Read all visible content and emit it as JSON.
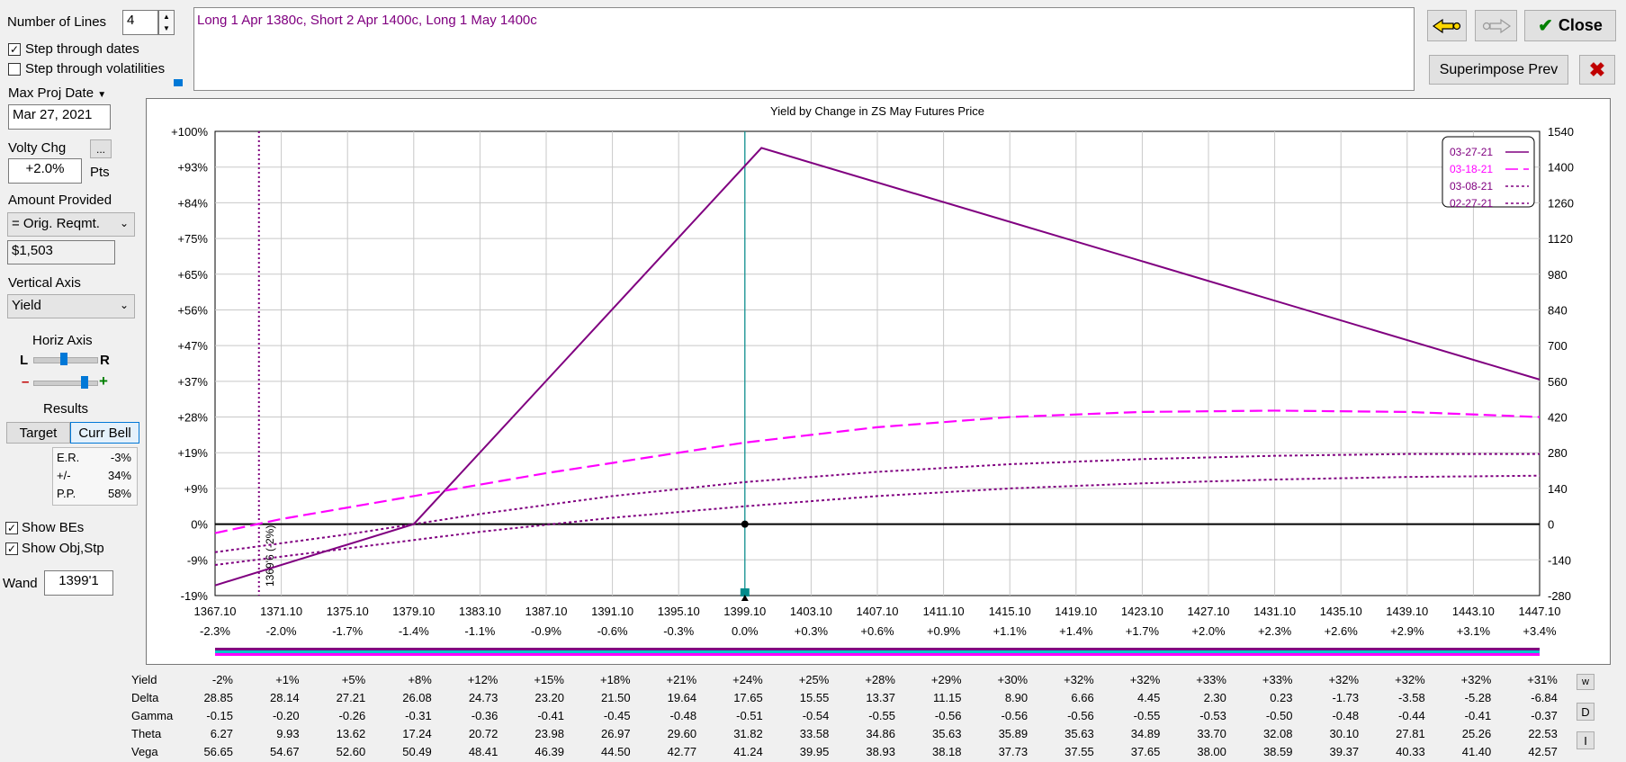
{
  "controls": {
    "num_lines_label": "Number of Lines",
    "num_lines_value": "4",
    "step_dates_label": "Step through dates",
    "step_dates_checked": true,
    "step_vols_label": "Step through volatilities",
    "step_vols_checked": false,
    "max_proj_date_label": "Max Proj Date",
    "max_proj_date_value": "Mar 27, 2021",
    "volty_chg_label": "Volty Chg",
    "volty_chg_button": "...",
    "volty_chg_value": "+2.0%",
    "volty_chg_units": "Pts",
    "amount_provided_label": "Amount Provided",
    "amount_provided_select": "= Orig. Reqmt.",
    "amount_value": "$1,503",
    "vertical_axis_label": "Vertical Axis",
    "vertical_axis_select": "Yield",
    "horiz_axis_label": "Horiz Axis",
    "horiz_left": "L",
    "horiz_right": "R",
    "zoom_minus": "–",
    "zoom_plus": "+",
    "results_label": "Results",
    "target_button": "Target",
    "curr_bell_button": "Curr Bell",
    "results_rows": [
      {
        "label": "E.R.",
        "value": "-3%"
      },
      {
        "label": "+/-",
        "value": "34%"
      },
      {
        "label": "P.P.",
        "value": "58%"
      }
    ],
    "show_bes_label": "Show BEs",
    "show_bes_checked": true,
    "show_obj_label": "Show Obj,Stp",
    "show_obj_checked": true,
    "wand_label": "Wand",
    "wand_value": "1399'1"
  },
  "position_text": "Long 1 Apr 1380c, Short 2 Apr 1400c, Long 1 May 1400c",
  "top_buttons": {
    "close_label": "Close",
    "superimpose_label": "Superimpose Prev",
    "back_arrow": "back-arrow-icon",
    "forward_arrow": "forward-arrow-icon",
    "delete_icon": "x-icon"
  },
  "colors": {
    "purple": "#800080",
    "magenta": "#ff00ff",
    "teal": "#008b8b",
    "close_check": "#008000",
    "delete_red": "#c00000"
  },
  "chart_data": {
    "type": "line",
    "title": "Yield by Change in ZS May Futures Price",
    "x_price_ticks": [
      "1367.10",
      "1371.10",
      "1375.10",
      "1379.10",
      "1383.10",
      "1387.10",
      "1391.10",
      "1395.10",
      "1399.10",
      "1403.10",
      "1407.10",
      "1411.10",
      "1415.10",
      "1419.10",
      "1423.10",
      "1427.10",
      "1431.10",
      "1435.10",
      "1439.10",
      "1443.10",
      "1447.10"
    ],
    "x_pct_ticks": [
      "-2.3%",
      "-2.0%",
      "-1.7%",
      "-1.4%",
      "-1.1%",
      "-0.9%",
      "-0.6%",
      "-0.3%",
      "0.0%",
      "+0.3%",
      "+0.6%",
      "+0.9%",
      "+1.1%",
      "+1.4%",
      "+1.7%",
      "+2.0%",
      "+2.3%",
      "+2.6%",
      "+2.9%",
      "+3.1%",
      "+3.4%"
    ],
    "y_left_ticks": [
      "+100%",
      "+93%",
      "+84%",
      "+75%",
      "+65%",
      "+56%",
      "+47%",
      "+37%",
      "+28%",
      "+19%",
      "+9%",
      "0%",
      "-9%",
      "-19%"
    ],
    "y_right_ticks": [
      "1540",
      "1400",
      "1260",
      "1120",
      "980",
      "840",
      "700",
      "560",
      "420",
      "280",
      "140",
      "0",
      "-140",
      "-280"
    ],
    "ylim": [
      -280,
      1540
    ],
    "x_range": [
      1367.1,
      1447.1
    ],
    "current_price": 1399.1,
    "breakeven": {
      "price": 1369.75,
      "label": "1369'6 (-2%)"
    },
    "legend_position": "top-right",
    "series": [
      {
        "name": "03-27-21",
        "style": "solid",
        "color": "#800080",
        "x": [
          1367.1,
          1379.1,
          1400.1,
          1447.1
        ],
        "y": [
          -240,
          0,
          1475,
          567
        ]
      },
      {
        "name": "03-18-21",
        "style": "long-dash",
        "color": "#ff00ff",
        "x": [
          1367.1,
          1371.1,
          1379.1,
          1387.1,
          1395.1,
          1399.1,
          1407.1,
          1415.1,
          1423.1,
          1431.1,
          1439.1,
          1447.1
        ],
        "y": [
          -35,
          20,
          110,
          200,
          280,
          320,
          380,
          420,
          440,
          445,
          440,
          420
        ]
      },
      {
        "name": "03-08-21",
        "style": "dotted",
        "color": "#800080",
        "x": [
          1367.1,
          1375.1,
          1383.1,
          1391.1,
          1399.1,
          1407.1,
          1415.1,
          1423.1,
          1431.1,
          1439.1,
          1447.1
        ],
        "y": [
          -110,
          -40,
          40,
          110,
          165,
          205,
          235,
          255,
          268,
          275,
          275
        ]
      },
      {
        "name": "02-27-21",
        "style": "dotted",
        "color": "#800080",
        "x": [
          1367.1,
          1375.1,
          1383.1,
          1391.1,
          1399.1,
          1407.1,
          1415.1,
          1423.1,
          1431.1,
          1439.1,
          1447.1
        ],
        "y": [
          -160,
          -95,
          -30,
          25,
          70,
          110,
          140,
          160,
          175,
          185,
          190
        ]
      }
    ]
  },
  "greeks": {
    "row_labels": [
      "Yield",
      "Delta",
      "Gamma",
      "Theta",
      "Vega"
    ],
    "rows": [
      [
        "-2%",
        "+1%",
        "+5%",
        "+8%",
        "+12%",
        "+15%",
        "+18%",
        "+21%",
        "+24%",
        "+25%",
        "+28%",
        "+29%",
        "+30%",
        "+32%",
        "+32%",
        "+33%",
        "+33%",
        "+32%",
        "+32%",
        "+32%",
        "+31%"
      ],
      [
        "28.85",
        "28.14",
        "27.21",
        "26.08",
        "24.73",
        "23.20",
        "21.50",
        "19.64",
        "17.65",
        "15.55",
        "13.37",
        "11.15",
        "8.90",
        "6.66",
        "4.45",
        "2.30",
        "0.23",
        "-1.73",
        "-3.58",
        "-5.28",
        "-6.84"
      ],
      [
        "-0.15",
        "-0.20",
        "-0.26",
        "-0.31",
        "-0.36",
        "-0.41",
        "-0.45",
        "-0.48",
        "-0.51",
        "-0.54",
        "-0.55",
        "-0.56",
        "-0.56",
        "-0.56",
        "-0.55",
        "-0.53",
        "-0.50",
        "-0.48",
        "-0.44",
        "-0.41",
        "-0.37"
      ],
      [
        "6.27",
        "9.93",
        "13.62",
        "17.24",
        "20.72",
        "23.98",
        "26.97",
        "29.60",
        "31.82",
        "33.58",
        "34.86",
        "35.63",
        "35.89",
        "35.63",
        "34.89",
        "33.70",
        "32.08",
        "30.10",
        "27.81",
        "25.26",
        "22.53"
      ],
      [
        "56.65",
        "54.67",
        "52.60",
        "50.49",
        "48.41",
        "46.39",
        "44.50",
        "42.77",
        "41.24",
        "39.95",
        "38.93",
        "38.18",
        "37.73",
        "37.55",
        "37.65",
        "38.00",
        "38.59",
        "39.37",
        "40.33",
        "41.40",
        "42.57"
      ]
    ]
  },
  "side_buttons": [
    "w",
    "D",
    "I"
  ]
}
